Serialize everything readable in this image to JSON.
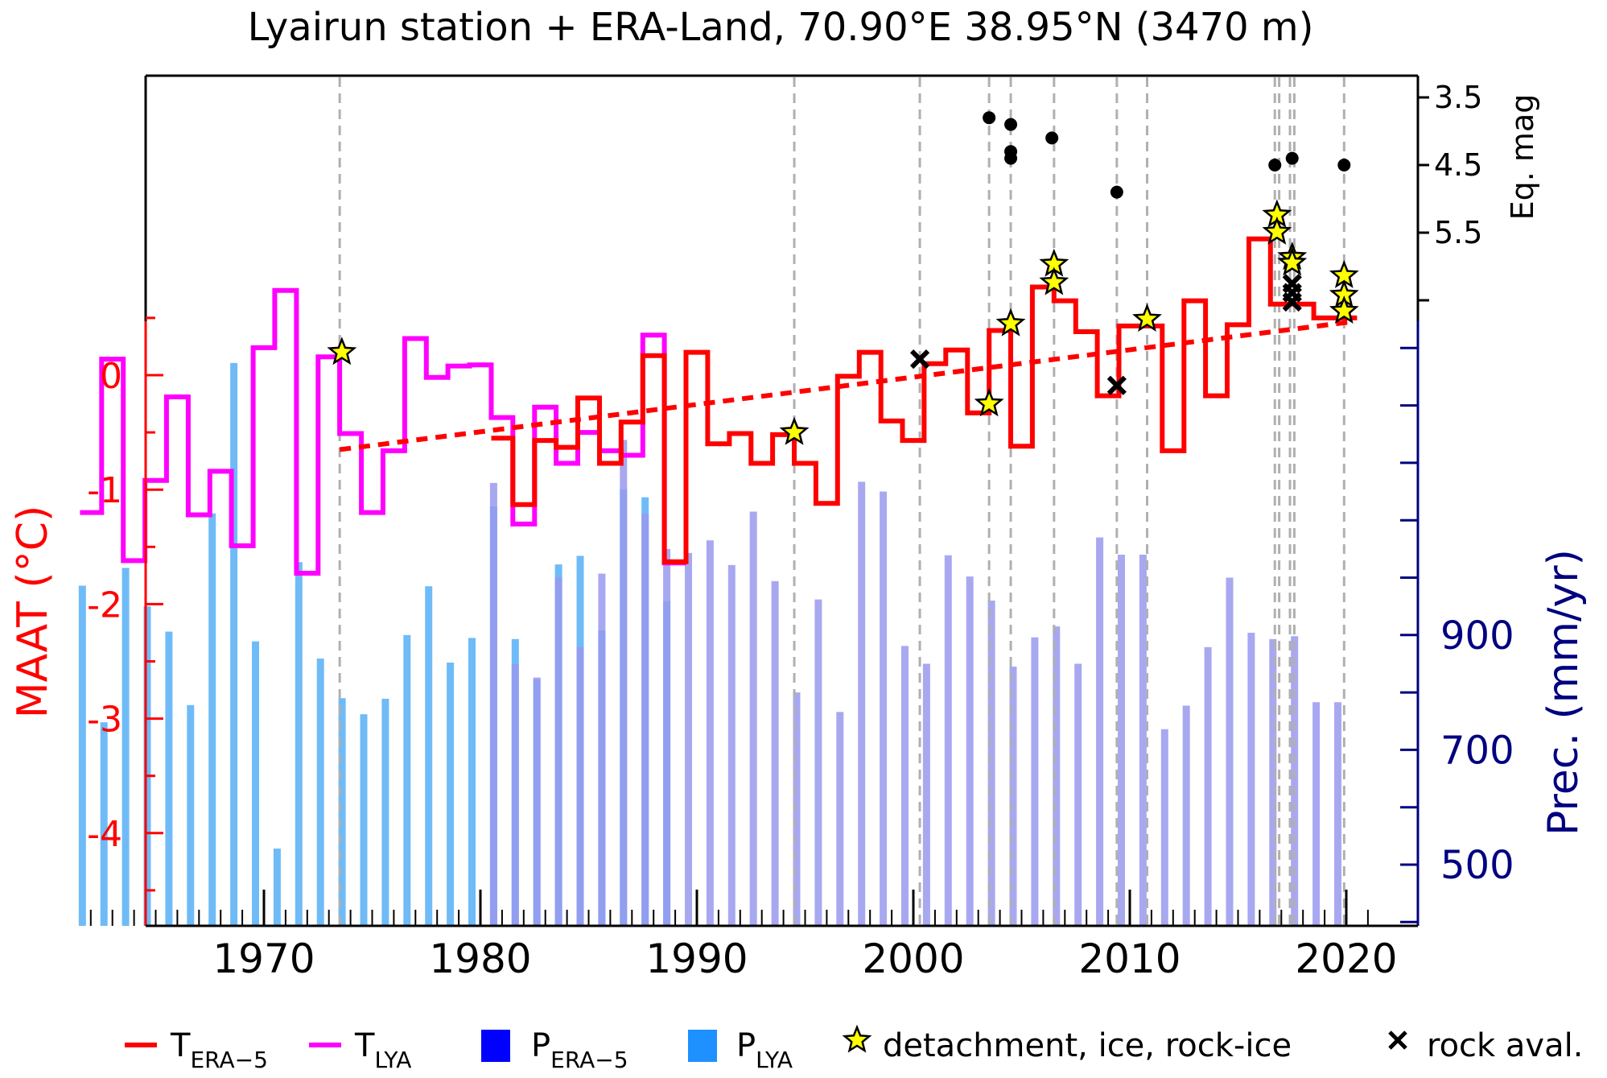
{
  "chart_data": {
    "type": "line",
    "title": "Lyairun station + ERA-Land, 70.90°E 38.95°N (3470 m)",
    "xlim": [
      1962,
      2021
    ],
    "x_ticks": [
      "1970",
      "1980",
      "1990",
      "2000",
      "2010",
      "2020"
    ],
    "left_axis": {
      "label": "MAAT (°C)",
      "ticks": [
        "0",
        "-1",
        "-2",
        "-3",
        "-4"
      ],
      "range": [
        -4.8,
        0.48
      ]
    },
    "right_axis": {
      "label": "Prec. (mm/yr)",
      "ticks": [
        "900",
        "700",
        "500"
      ],
      "range": [
        400,
        1450
      ]
    },
    "top_right_axis": {
      "label": "Eq. mag",
      "ticks": [
        "3.5",
        "4.5",
        "5.5"
      ],
      "range": [
        3.5,
        6.5
      ]
    },
    "series": [
      {
        "name": "T_ERA-5",
        "color": "#ff0000",
        "kind": "step",
        "x": [
          1981,
          1982,
          1983,
          1984,
          1985,
          1986,
          1987,
          1988,
          1989,
          1990,
          1991,
          1992,
          1993,
          1994,
          1995,
          1996,
          1997,
          1998,
          1999,
          2000,
          2001,
          2002,
          2003,
          2004,
          2005,
          2006,
          2007,
          2008,
          2009,
          2010,
          2011,
          2012,
          2013,
          2014,
          2015,
          2016,
          2017,
          2018,
          2019,
          2020
        ],
        "values": [
          -0.55,
          -1.13,
          -0.57,
          -0.63,
          -0.2,
          -0.77,
          -0.41,
          0.17,
          -1.63,
          0.2,
          -0.6,
          -0.51,
          -0.77,
          -0.52,
          -0.77,
          -1.12,
          -0.01,
          0.2,
          -0.4,
          -0.57,
          0.1,
          0.22,
          -0.33,
          0.39,
          -0.62,
          0.77,
          0.65,
          0.38,
          -0.18,
          0.43,
          0.43,
          -0.66,
          0.65,
          -0.18,
          0.44,
          1.19,
          0.62,
          0.62,
          0.5,
          0.5
        ]
      },
      {
        "name": "T_LYA",
        "color": "#ff00ff",
        "kind": "step",
        "x": [
          1962,
          1963,
          1964,
          1965,
          1966,
          1967,
          1968,
          1969,
          1970,
          1971,
          1972,
          1973,
          1974,
          1975,
          1976,
          1977,
          1978,
          1979,
          1980,
          1981,
          1982,
          1983,
          1984,
          1985,
          1986,
          1987,
          1988,
          1989
        ],
        "values": [
          -1.2,
          0.14,
          -1.62,
          -0.92,
          -0.19,
          -1.22,
          -0.84,
          -1.49,
          0.24,
          0.74,
          -1.73,
          0.16,
          -0.51,
          -1.2,
          -0.66,
          0.32,
          -0.02,
          0.08,
          0.09,
          -0.37,
          -1.3,
          -0.28,
          -0.77,
          -0.5,
          -0.66,
          -0.7,
          0.35,
          -1.64
        ]
      },
      {
        "name": "P_ERA-5",
        "color": "#9999ee",
        "kind": "bar",
        "x": [
          1981,
          1982,
          1983,
          1984,
          1985,
          1986,
          1987,
          1988,
          1989,
          1990,
          1991,
          1992,
          1993,
          1994,
          1995,
          1996,
          1997,
          1998,
          1999,
          2000,
          2001,
          2002,
          2003,
          2004,
          2005,
          2006,
          2007,
          2008,
          2009,
          2010,
          2011,
          2012,
          2013,
          2014,
          2015,
          2016,
          2017,
          2018,
          2019,
          2020
        ],
        "values": [
          1165,
          849,
          826,
          1000,
          879,
          1007,
          1240,
          1111,
          1050,
          1043,
          1065,
          1022,
          1115,
          994,
          800,
          962,
          766,
          1167,
          1150,
          881,
          850,
          1039,
          1002,
          960,
          845,
          896,
          915,
          850,
          1070,
          1040,
          1040,
          736,
          777,
          879,
          1000,
          904,
          893,
          898,
          783,
          783
        ]
      },
      {
        "name": "P_LYA",
        "color": "#6fbbf7",
        "kind": "bar",
        "x": [
          1962,
          1963,
          1964,
          1965,
          1966,
          1967,
          1968,
          1969,
          1970,
          1971,
          1972,
          1973,
          1974,
          1975,
          1976,
          1977,
          1978,
          1979,
          1980,
          1981,
          1982,
          1983,
          1984,
          1985,
          1986,
          1987,
          1988,
          1989
        ],
        "values": [
          986,
          748,
          1017,
          950,
          906,
          778,
          1112,
          1374,
          889,
          528,
          1027,
          859,
          790,
          762,
          789,
          900,
          985,
          852,
          895,
          1124,
          893,
          823,
          1023,
          1038,
          908,
          1154,
          1140,
          959
        ]
      }
    ],
    "markers": {
      "stars": [
        [
          1973.6,
          0.2
        ],
        [
          1994.5,
          -0.5
        ],
        [
          2003.5,
          -0.25
        ],
        [
          2004.5,
          0.45
        ],
        [
          2006.5,
          0.97
        ],
        [
          2006.5,
          0.81
        ],
        [
          2010.8,
          0.49
        ],
        [
          2016.8,
          1.4
        ],
        [
          2016.8,
          1.25
        ],
        [
          2017.5,
          1.03
        ],
        [
          2017.5,
          0.98
        ],
        [
          2019.9,
          0.87
        ],
        [
          2019.9,
          0.7
        ],
        [
          2019.9,
          0.56
        ]
      ],
      "crosses": [
        [
          2000.3,
          0.14
        ],
        [
          2009.4,
          -0.09
        ],
        [
          2017.5,
          0.8
        ],
        [
          2017.5,
          0.72
        ],
        [
          2017.5,
          0.64
        ]
      ],
      "quakes": [
        [
          2003.5,
          3.8
        ],
        [
          2004.5,
          3.9
        ],
        [
          2004.5,
          4.3
        ],
        [
          2004.5,
          4.4
        ],
        [
          2006.4,
          4.1
        ],
        [
          2009.4,
          4.9
        ],
        [
          2016.7,
          4.5
        ],
        [
          2017.5,
          4.4
        ],
        [
          2019.9,
          4.5
        ]
      ],
      "event_lines": [
        1973.5,
        1994.5,
        2000.3,
        2003.5,
        2004.5,
        2006.5,
        2009.4,
        2010.8,
        2016.7,
        2016.9,
        2017.4,
        2017.6,
        2019.9
      ]
    },
    "trend": {
      "name": "trend",
      "color": "#ff0000",
      "style": "dashed",
      "x": [
        1973.5,
        2020.4
      ],
      "values": [
        -0.65,
        0.47
      ]
    }
  },
  "legend": {
    "t_era_main": "T",
    "t_era_sub": "ERA−5",
    "t_lya_main": "T",
    "t_lya_sub": "LYA",
    "p_era_main": "P",
    "p_era_sub": "ERA−5",
    "p_lya_main": "P",
    "p_lya_sub": "LYA",
    "star_label": "detachment, ice, rock-ice",
    "cross_label": "rock aval.",
    "colors": {
      "era_line": "#ff0000",
      "lya_line": "#ff00ff",
      "era_bar": "#0000ff",
      "lya_bar": "#1e90ff",
      "star": "#ffff00"
    }
  }
}
